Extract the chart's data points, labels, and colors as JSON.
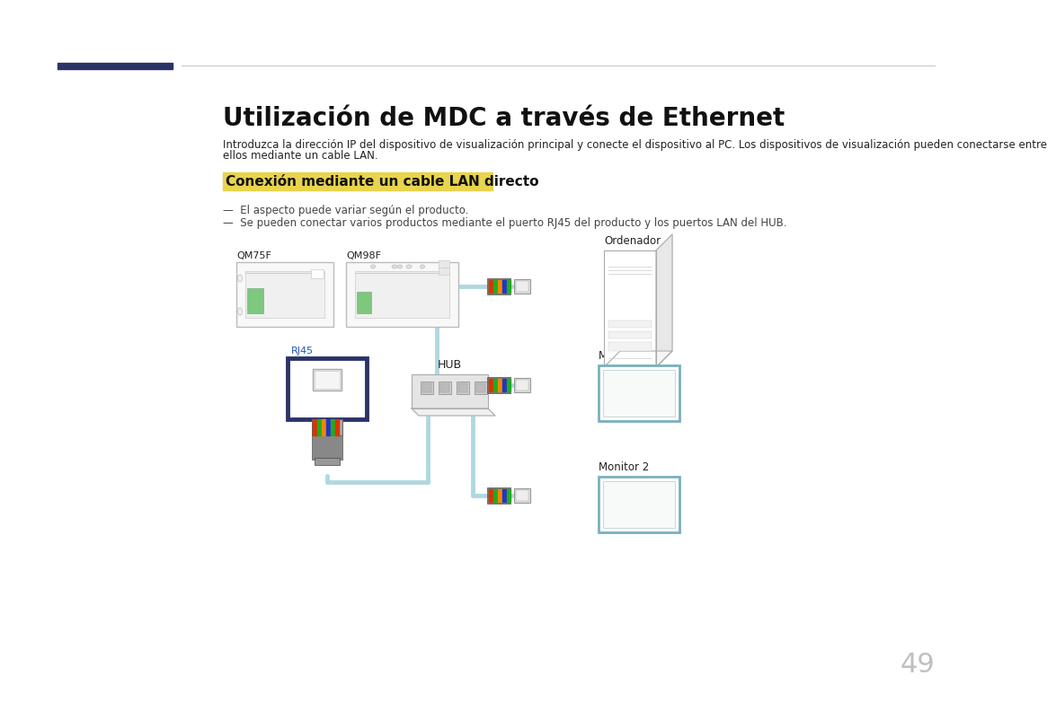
{
  "bg_color": "#ffffff",
  "title": "Utilización de MDC a través de Ethernet",
  "subtitle_line1": "Introduzca la dirección IP del dispositivo de visualización principal y conecte el dispositivo al PC. Los dispositivos de visualización pueden conectarse entre",
  "subtitle_line2": "ellos mediante un cable LAN.",
  "section_label": "Conexión mediante un cable LAN directo",
  "section_label_bg": "#e8d44d",
  "bullet1": "El aspecto puede variar según el producto.",
  "bullet2": "Se pueden conectar varios productos mediante el puerto RJ45 del producto y los puertos LAN del HUB.",
  "label_qm75f": "QM75F",
  "label_qm98f": "QM98F",
  "label_rj45": "RJ45",
  "label_hub": "HUB",
  "label_ordenador": "Ordenador",
  "label_monitor1": "Monitor 1",
  "label_monitor2": "Monitor 2",
  "page_number": "49",
  "header_line_color": "#c8c8c8",
  "header_dark_color": "#2b3467",
  "cable_color": "#b0d8e0",
  "monitor_border": "#7ab0bc",
  "rj45_border": "#2b3467",
  "text_color": "#222222",
  "small_text_color": "#444444",
  "title_fontsize": 20,
  "subtitle_fontsize": 8.5,
  "section_fontsize": 11,
  "bullet_fontsize": 8.5,
  "label_fontsize": 8,
  "page_fontsize": 22
}
